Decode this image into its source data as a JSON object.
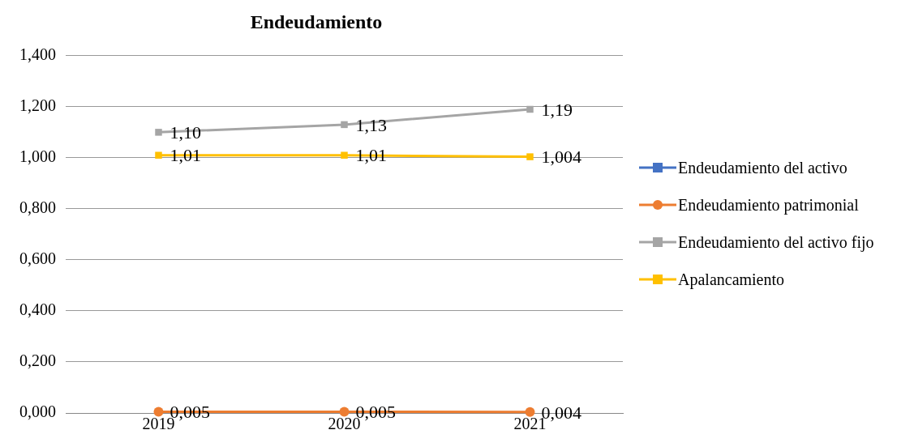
{
  "chart_data": {
    "type": "line",
    "title": "Endeudamiento",
    "categories": [
      "2019",
      "2020",
      "2021"
    ],
    "series": [
      {
        "name": "Endeudamiento del activo",
        "color": "#4472c4",
        "marker": "square",
        "values": [
          null,
          null,
          null
        ]
      },
      {
        "name": "Endeudamiento patrimonial",
        "color": "#ed7d31",
        "marker": "circle",
        "values": [
          0.005,
          0.005,
          0.004
        ],
        "value_labels": [
          "0,005",
          "0,005",
          "0,004"
        ]
      },
      {
        "name": "Endeudamiento del activo fijo",
        "color": "#a5a5a5",
        "marker": "square",
        "values": [
          1.1,
          1.13,
          1.19
        ],
        "value_labels": [
          "1,10",
          "1,13",
          "1,19"
        ]
      },
      {
        "name": "Apalancamiento",
        "color": "#ffc000",
        "marker": "square",
        "values": [
          1.01,
          1.01,
          1.004
        ],
        "value_labels": [
          "1,01",
          "1,01",
          "1,004"
        ]
      }
    ],
    "ylim": [
      0,
      1.4
    ],
    "yticks": [
      {
        "value": 0,
        "label": "0,000"
      },
      {
        "value": 0.2,
        "label": "0,200"
      },
      {
        "value": 0.4,
        "label": "0,400"
      },
      {
        "value": 0.6,
        "label": "0,600"
      },
      {
        "value": 0.8,
        "label": "0,800"
      },
      {
        "value": 1.0,
        "label": "1,000"
      },
      {
        "value": 1.2,
        "label": "1,200"
      },
      {
        "value": 1.4,
        "label": "1,400"
      }
    ],
    "grid": "y",
    "legend": "right"
  }
}
